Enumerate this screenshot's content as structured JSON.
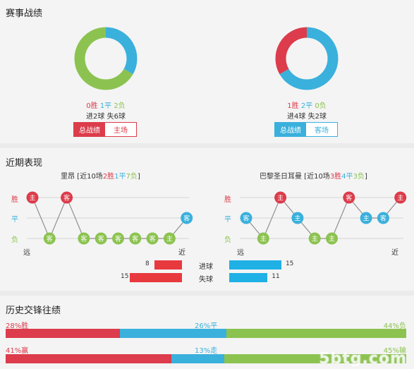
{
  "sections": {
    "record_title": "赛事战绩",
    "form_title": "近期表现",
    "h2h_title": "历史交锋往绩"
  },
  "home": {
    "donut": {
      "win": 0,
      "draw": 1,
      "loss": 2
    },
    "rec_win": "0胜",
    "rec_draw": "1平",
    "rec_loss": "2负",
    "goals_line": "进2球 失6球",
    "tab_total": "总战绩",
    "tab_venue": "主场",
    "form_name": "里昂",
    "form_open": " [近10场",
    "form_win": "2胜",
    "form_draw": "1平",
    "form_loss": "7负",
    "form_close": "]",
    "form": [
      {
        "result": "W",
        "venue": "主"
      },
      {
        "result": "L",
        "venue": "客"
      },
      {
        "result": "W",
        "venue": "客"
      },
      {
        "result": "L",
        "venue": "客"
      },
      {
        "result": "L",
        "venue": "客"
      },
      {
        "result": "L",
        "venue": "客"
      },
      {
        "result": "L",
        "venue": "客"
      },
      {
        "result": "L",
        "venue": "客"
      },
      {
        "result": "L",
        "venue": "主"
      },
      {
        "result": "D",
        "venue": "客"
      }
    ],
    "scored": 8,
    "conceded": 15
  },
  "away": {
    "donut": {
      "win": 1,
      "draw": 2,
      "loss": 0
    },
    "rec_win": "1胜",
    "rec_draw": "2平",
    "rec_loss": "0负",
    "goals_line": "进4球 失2球",
    "tab_total": "总战绩",
    "tab_venue": "客场",
    "form_name": "巴黎圣日耳曼",
    "form_open": " [近10场",
    "form_win": "3胜",
    "form_draw": "4平",
    "form_loss": "3负",
    "form_close": "]",
    "form": [
      {
        "result": "D",
        "venue": "客"
      },
      {
        "result": "L",
        "venue": "主"
      },
      {
        "result": "W",
        "venue": "主"
      },
      {
        "result": "D",
        "venue": "主"
      },
      {
        "result": "L",
        "venue": "主"
      },
      {
        "result": "L",
        "venue": "主"
      },
      {
        "result": "W",
        "venue": "客"
      },
      {
        "result": "D",
        "venue": "主"
      },
      {
        "result": "D",
        "venue": "客"
      },
      {
        "result": "W",
        "venue": "主"
      }
    ],
    "scored": 15,
    "conceded": 11
  },
  "form_axis": {
    "win": "胜",
    "draw": "平",
    "loss": "负",
    "far": "远",
    "near": "近"
  },
  "goals_labels": {
    "scored": "进球",
    "conceded": "失球"
  },
  "h2h": {
    "results": {
      "left_label": "28%胜",
      "mid_label": "26%平",
      "right_label": "44%负",
      "values": [
        28,
        26,
        44
      ]
    },
    "handicap": {
      "left_label": "41%赢",
      "mid_label": "13%走",
      "right_label": "45%输",
      "values": [
        41,
        13,
        45
      ]
    }
  },
  "colors": {
    "red": "#dc3c4b",
    "blue": "#3ab0dc",
    "green": "#8cc350",
    "grid": "#d4d4d4"
  },
  "watermark": "5btg.com"
}
